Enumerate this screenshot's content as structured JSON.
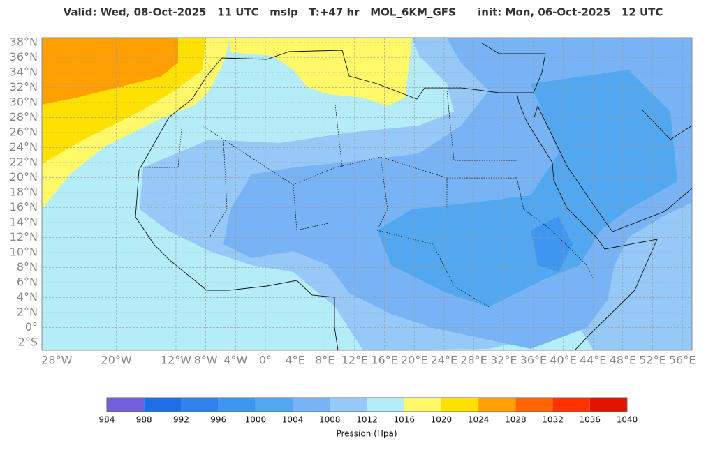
{
  "header": {
    "title": "Valid: Wed, 08-Oct-2025   11 UTC   mslp   T:+47 hr   MOL_6KM_GFS      init: Mon, 06-Oct-2025   12 UTC"
  },
  "map": {
    "lonlim": [
      -30,
      57.3
    ],
    "latlim": [
      -3,
      38.65
    ],
    "lon_ticks": [
      {
        "value": -28,
        "label": "28°W"
      },
      {
        "value": -20,
        "label": "20°W"
      },
      {
        "value": -12,
        "label": "12°W"
      },
      {
        "value": -8,
        "label": "8°W"
      },
      {
        "value": -4,
        "label": "4°W"
      },
      {
        "value": 0,
        "label": "0°"
      },
      {
        "value": 4,
        "label": "4°E"
      },
      {
        "value": 8,
        "label": "8°E"
      },
      {
        "value": 12,
        "label": "12°E"
      },
      {
        "value": 16,
        "label": "16°E"
      },
      {
        "value": 20,
        "label": "20°E"
      },
      {
        "value": 24,
        "label": "24°E"
      },
      {
        "value": 28,
        "label": "28°E"
      },
      {
        "value": 32,
        "label": "32°E"
      },
      {
        "value": 36,
        "label": "36°E"
      },
      {
        "value": 40,
        "label": "40°E"
      },
      {
        "value": 44,
        "label": "44°E"
      },
      {
        "value": 48,
        "label": "48°E"
      },
      {
        "value": 52,
        "label": "52°E"
      },
      {
        "value": 56,
        "label": "56°E"
      }
    ],
    "lat_ticks": [
      {
        "value": 38,
        "label": "38°N"
      },
      {
        "value": 36,
        "label": "36°N"
      },
      {
        "value": 34,
        "label": "34°N"
      },
      {
        "value": 32,
        "label": "32°N"
      },
      {
        "value": 30,
        "label": "30°N"
      },
      {
        "value": 28,
        "label": "28°N"
      },
      {
        "value": 26,
        "label": "26°N"
      },
      {
        "value": 24,
        "label": "24°N"
      },
      {
        "value": 22,
        "label": "22°N"
      },
      {
        "value": 20,
        "label": "20°N"
      },
      {
        "value": 18,
        "label": "18°N"
      },
      {
        "value": 16,
        "label": "16°N"
      },
      {
        "value": 14,
        "label": "14°N"
      },
      {
        "value": 12,
        "label": "12°N"
      },
      {
        "value": 10,
        "label": "10°N"
      },
      {
        "value": 8,
        "label": "8°N"
      },
      {
        "value": 6,
        "label": "6°N"
      },
      {
        "value": 4,
        "label": "4°N"
      },
      {
        "value": 2,
        "label": "2°N"
      },
      {
        "value": 0,
        "label": "0°"
      },
      {
        "value": -2,
        "label": "2°S"
      }
    ]
  },
  "colorbar": {
    "ticks": [
      984,
      988,
      992,
      996,
      1000,
      1004,
      1008,
      1012,
      1016,
      1020,
      1024,
      1028,
      1032,
      1036,
      1040
    ],
    "colors": [
      "#7060dc",
      "#1e6ee6",
      "#2f82ee",
      "#3e96f0",
      "#52a8f0",
      "#78b4f5",
      "#96c8f8",
      "#b4ecf8",
      "#fff96a",
      "#ffe100",
      "#ffa000",
      "#ff6400",
      "#ff3200",
      "#e11400"
    ],
    "label": "Pression (Hpa)"
  }
}
